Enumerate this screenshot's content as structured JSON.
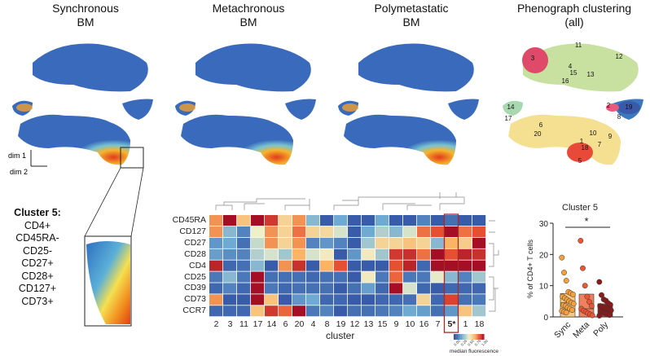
{
  "panels": [
    {
      "title_line1": "Synchronous",
      "title_line2": "BM"
    },
    {
      "title_line1": "Metachronous",
      "title_line2": "BM"
    },
    {
      "title_line1": "Polymetastatic",
      "title_line2": "BM"
    },
    {
      "title_line1": "Phenograph clustering",
      "title_line2": "(all)"
    }
  ],
  "axes": {
    "dim1": "dim 1",
    "dim2": "dim 2"
  },
  "cluster5_phenotype": [
    "Cluster 5:",
    "CD4+",
    "CD45RA-",
    "CD25-",
    "CD27+",
    "CD28+",
    "CD127+",
    "CD73+"
  ],
  "phenograph_clusters": [
    "3",
    "11",
    "12",
    "4",
    "15",
    "13",
    "16",
    "14",
    "17",
    "2",
    "19",
    "8",
    "6",
    "20",
    "10",
    "9",
    "1",
    "18",
    "7",
    "5"
  ],
  "colors": {
    "low": "#2b49a0",
    "mid": "#f2f0c0",
    "high": "#a50f26",
    "sync": "#f6a03c",
    "meta": "#ee5533",
    "poly": "#8b1a1a",
    "highlight": "#a52a2a"
  },
  "chart_data": [
    {
      "type": "heatmap",
      "xlabel": "cluster",
      "rows": [
        "CD45RA",
        "CD127",
        "CD27",
        "CD28",
        "CD4",
        "CD25",
        "CD39",
        "CD73",
        "CCR7"
      ],
      "columns": [
        "2",
        "3",
        "11",
        "17",
        "14",
        "6",
        "20",
        "4",
        "8",
        "19",
        "12",
        "13",
        "15",
        "9",
        "10",
        "16",
        "7",
        "5*",
        "1",
        "18"
      ],
      "highlight_column": "5*",
      "values": [
        [
          0.75,
          1.0,
          0.65,
          1.0,
          0.9,
          0.6,
          0.75,
          0.3,
          0.05,
          0.25,
          0.05,
          0.05,
          0.25,
          0.05,
          0.05,
          0.15,
          0.05,
          0.1,
          0.05,
          0.05
        ],
        [
          0.75,
          0.3,
          0.15,
          0.5,
          0.75,
          0.6,
          0.8,
          0.6,
          0.58,
          0.45,
          0.05,
          0.25,
          0.38,
          0.3,
          0.45,
          0.8,
          0.85,
          1.0,
          0.8,
          0.85
        ],
        [
          0.2,
          0.25,
          0.1,
          0.42,
          0.75,
          0.6,
          0.75,
          0.15,
          0.2,
          0.15,
          0.05,
          0.35,
          0.6,
          0.6,
          0.65,
          0.6,
          0.3,
          0.7,
          0.62,
          1.0
        ],
        [
          0.22,
          0.18,
          0.15,
          0.38,
          0.45,
          0.35,
          0.7,
          0.45,
          0.52,
          0.05,
          0.2,
          0.52,
          0.35,
          0.9,
          0.92,
          0.8,
          1.0,
          0.85,
          0.95,
          0.92
        ],
        [
          0.95,
          0.08,
          0.1,
          0.3,
          0.05,
          0.75,
          0.92,
          0.05,
          0.7,
          0.85,
          0.05,
          0.05,
          0.05,
          0.85,
          0.95,
          0.08,
          1.0,
          1.0,
          1.0,
          1.0
        ],
        [
          0.12,
          0.3,
          0.12,
          1.0,
          0.1,
          0.1,
          0.1,
          0.08,
          0.1,
          0.1,
          0.05,
          0.52,
          0.12,
          0.82,
          0.12,
          0.12,
          0.48,
          0.3,
          0.15,
          0.35
        ],
        [
          0.08,
          0.15,
          0.08,
          1.0,
          0.12,
          0.08,
          0.1,
          0.1,
          0.1,
          0.05,
          0.1,
          0.22,
          0.08,
          1.0,
          0.45,
          0.08,
          0.05,
          0.08,
          0.08,
          0.08
        ],
        [
          0.75,
          0.05,
          0.05,
          1.0,
          0.65,
          0.05,
          0.2,
          0.25,
          0.08,
          0.08,
          0.05,
          0.05,
          0.08,
          0.08,
          0.1,
          0.6,
          0.08,
          0.88,
          0.1,
          0.12
        ],
        [
          0.08,
          0.08,
          0.08,
          0.65,
          0.9,
          0.82,
          1.0,
          0.12,
          0.15,
          0.05,
          0.1,
          0.1,
          0.12,
          0.15,
          0.25,
          0.22,
          0.1,
          0.2,
          0.65,
          0.35
        ]
      ],
      "colorbar": {
        "label": "median fluorescence",
        "ticks": [
          "0.00",
          "0.25",
          "0.50",
          "0.75",
          "1.00"
        ],
        "range": [
          0,
          1
        ]
      }
    },
    {
      "type": "bar",
      "title": "Cluster 5",
      "ylabel": "% of CD4+ T cells",
      "ylim": [
        0,
        30
      ],
      "yticks": [
        "0",
        "10",
        "20",
        "30"
      ],
      "categories": [
        "Sync",
        "Meta",
        "Poly"
      ],
      "values": [
        7.5,
        7.3,
        4.2
      ],
      "medians": [
        4.6,
        2.6,
        2.8
      ],
      "points": [
        [
          19,
          14.2,
          11.6,
          8,
          7.6,
          7.2,
          6.5,
          6,
          5.5,
          5,
          4.6,
          4.2,
          3.8,
          3.5,
          3,
          2.6,
          2.2,
          1.9,
          1.6,
          1.4
        ],
        [
          24.4,
          15.6,
          10,
          6.5,
          4.8,
          3.5,
          2.6,
          2,
          1.6,
          1.2,
          0.8,
          0.5
        ],
        [
          11.2,
          7,
          5.6,
          5.2,
          4.4,
          3.9,
          3.5,
          3.2,
          3,
          2.8,
          2.4,
          2.1,
          1.8,
          1.5,
          1.2,
          0.9,
          0.6,
          0.4
        ]
      ],
      "significance": "*"
    }
  ]
}
